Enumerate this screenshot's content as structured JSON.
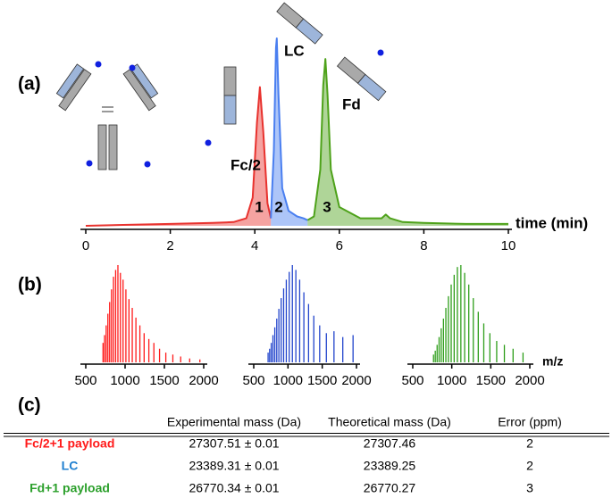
{
  "chart_data": [
    {
      "type": "line",
      "label": "(a)",
      "x_label": "time (min)",
      "xlim": [
        0,
        10
      ],
      "xticks": [
        0,
        2,
        4,
        6,
        8,
        10
      ],
      "ylim": [
        0,
        100
      ],
      "peak_labels": [
        "1",
        "2",
        "3"
      ],
      "annotations": [
        "Fc/2",
        "LC",
        "Fd"
      ],
      "series": [
        {
          "color": "#e8322e",
          "x": [
            0,
            1,
            2,
            3,
            3.5,
            3.8,
            3.95,
            4.05,
            4.12,
            4.2,
            4.3,
            4.38
          ],
          "values": [
            0,
            0.5,
            1,
            1.5,
            2,
            4,
            15,
            55,
            74,
            50,
            12,
            4
          ]
        },
        {
          "color": "#4a7ff0",
          "x": [
            4.38,
            4.45,
            4.5,
            4.52,
            4.56,
            4.65,
            4.8,
            5.0,
            5.15,
            5.25
          ],
          "values": [
            4,
            40,
            95,
            100,
            70,
            20,
            8,
            5,
            4,
            3
          ]
        },
        {
          "color": "#4ea21a",
          "x": [
            5.25,
            5.4,
            5.55,
            5.62,
            5.67,
            5.72,
            5.8,
            6.0,
            6.5,
            7.0,
            7.1,
            7.2,
            7.5,
            8,
            9,
            10
          ],
          "values": [
            3,
            5,
            30,
            75,
            89,
            70,
            30,
            10,
            4,
            4,
            6,
            4,
            2,
            1.5,
            1,
            1
          ]
        }
      ]
    },
    {
      "type": "bar",
      "label": "(b)",
      "color": "#ff1a1a",
      "xlim": [
        500,
        2000
      ],
      "xticks": [
        500,
        1000,
        1500,
        2000
      ],
      "ylim": [
        0,
        100
      ],
      "x": [
        719.6,
        738.9,
        759.5,
        781.2,
        803.6,
        827.5,
        852.4,
        879.9,
        908.9,
        940.6,
        974.3,
        1010.4,
        1049.3,
        1091.3,
        1137.8,
        1188.3,
        1242.3,
        1302.3,
        1366.4,
        1438.3,
        1518.1,
        1607.5,
        1707.1,
        1821.5,
        1951.5
      ],
      "values": [
        20,
        28,
        38,
        50,
        62,
        75,
        88,
        95,
        100,
        92,
        85,
        75,
        65,
        56,
        46,
        38,
        30,
        24,
        20,
        14,
        10,
        8,
        6,
        4,
        3
      ]
    },
    {
      "type": "bar",
      "color": "#2244cc",
      "xlim": [
        500,
        2000
      ],
      "xticks": [
        500,
        1000,
        1500,
        2000
      ],
      "ylim": [
        0,
        100
      ],
      "x": [
        709.8,
        731.9,
        755.5,
        780.6,
        807.5,
        836.3,
        867.3,
        900.6,
        936.6,
        975.5,
        1017.9,
        1064.1,
        1114.8,
        1170.5,
        1232.0,
        1300.4,
        1376.8,
        1462.8,
        1560.3,
        1671.6,
        1800.2,
        1950.1
      ],
      "values": [
        10,
        14,
        20,
        28,
        36,
        45,
        55,
        66,
        76,
        85,
        93,
        100,
        95,
        85,
        72,
        60,
        48,
        38,
        30,
        32,
        26,
        28
      ]
    },
    {
      "type": "bar",
      "color": "#2e9e1a",
      "x_label": "m/z",
      "xlim": [
        500,
        2000
      ],
      "xticks": [
        500,
        1000,
        1500,
        2000
      ],
      "ylim": [
        0,
        100
      ],
      "x": [
        765.9,
        788.4,
        812.2,
        837.6,
        864.5,
        893.3,
        924.1,
        957.1,
        992.5,
        1030.6,
        1071.8,
        1116.4,
        1164.9,
        1217.8,
        1275.8,
        1339.5,
        1410.0,
        1488.2,
        1575.7,
        1674.1,
        1785.7,
        1913.1
      ],
      "values": [
        8,
        12,
        18,
        26,
        35,
        45,
        56,
        68,
        80,
        90,
        98,
        100,
        92,
        80,
        66,
        52,
        40,
        30,
        22,
        18,
        14,
        10
      ]
    }
  ],
  "table": {
    "label": "(c)",
    "header": [
      "Experimental mass (Da)",
      "Theoretical mass (Da)",
      "Error (ppm)"
    ],
    "row_colors": [
      "#ff1a1a",
      "#1e7fd0",
      "#2ca02c"
    ],
    "rows": [
      [
        "Fc/2+1 payload",
        "27307.51 ± 0.01",
        27307.46,
        2
      ],
      [
        "LC",
        "23389.31 ± 0.01",
        23389.25,
        2
      ],
      [
        "Fd+1 payload",
        "26770.34 ± 0.01",
        26770.27,
        3
      ]
    ]
  }
}
